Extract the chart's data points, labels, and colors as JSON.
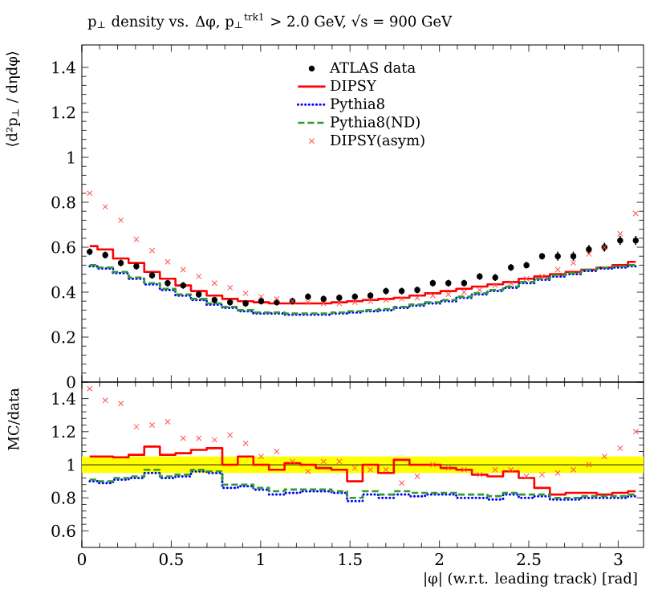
{
  "chart_data": [
    {
      "type": "step",
      "title": "p$_{⊥}$ density vs. Δφ, p$_{⊥}$$^{trk1}$ > 2.0 GeV, √s = 900 GeV",
      "ylabel": "⟨d²p$_{⊥}$ / dηdφ⟩",
      "x": [
        0.044,
        0.131,
        0.218,
        0.305,
        0.393,
        0.48,
        0.567,
        0.654,
        0.742,
        0.829,
        0.916,
        1.003,
        1.09,
        1.178,
        1.265,
        1.352,
        1.44,
        1.527,
        1.614,
        1.701,
        1.789,
        1.876,
        1.963,
        2.05,
        2.138,
        2.225,
        2.312,
        2.4,
        2.487,
        2.574,
        2.662,
        2.749,
        2.836,
        2.923,
        3.011,
        3.098
      ],
      "xlim": [
        0,
        3.1416
      ],
      "xticks": [
        0,
        0.5,
        1,
        1.5,
        2,
        2.5,
        3
      ],
      "ylim": [
        0,
        1.5
      ],
      "yticks": [
        0,
        0.2,
        0.4,
        0.6,
        0.8,
        1,
        1.2,
        1.4
      ],
      "tick_labels": "y",
      "legend": "top",
      "series": [
        {
          "name": "ATLAS data",
          "type": "scatter",
          "marker": "circle",
          "color": "#000000",
          "values": [
            0.58,
            0.565,
            0.53,
            0.515,
            0.475,
            0.44,
            0.43,
            0.39,
            0.365,
            0.355,
            0.35,
            0.36,
            0.355,
            0.36,
            0.38,
            0.37,
            0.375,
            0.38,
            0.385,
            0.405,
            0.405,
            0.41,
            0.44,
            0.44,
            0.44,
            0.47,
            0.465,
            0.51,
            0.52,
            0.56,
            0.56,
            0.56,
            0.59,
            0.6,
            0.63,
            0.63
          ],
          "errors": [
            0.015,
            0.015,
            0.015,
            0.015,
            0.015,
            0.015,
            0.015,
            0.015,
            0.015,
            0.015,
            0.015,
            0.015,
            0.015,
            0.015,
            0.015,
            0.015,
            0.015,
            0.015,
            0.015,
            0.015,
            0.015,
            0.015,
            0.015,
            0.015,
            0.015,
            0.015,
            0.015,
            0.015,
            0.015,
            0.015,
            0.02,
            0.02,
            0.02,
            0.02,
            0.02,
            0.02
          ]
        },
        {
          "name": "DIPSY",
          "color": "#ff0000",
          "line_style": "solid",
          "values": [
            0.605,
            0.59,
            0.55,
            0.53,
            0.49,
            0.46,
            0.43,
            0.405,
            0.385,
            0.37,
            0.36,
            0.355,
            0.35,
            0.35,
            0.35,
            0.35,
            0.355,
            0.36,
            0.365,
            0.37,
            0.375,
            0.385,
            0.395,
            0.405,
            0.415,
            0.425,
            0.435,
            0.445,
            0.46,
            0.47,
            0.48,
            0.49,
            0.5,
            0.51,
            0.52,
            0.535
          ]
        },
        {
          "name": "Pythia8",
          "color": "#0000ff",
          "line_style": "dotted",
          "values": [
            0.515,
            0.505,
            0.485,
            0.46,
            0.435,
            0.41,
            0.385,
            0.365,
            0.345,
            0.33,
            0.315,
            0.305,
            0.305,
            0.3,
            0.3,
            0.3,
            0.305,
            0.31,
            0.315,
            0.32,
            0.33,
            0.34,
            0.35,
            0.36,
            0.375,
            0.39,
            0.405,
            0.42,
            0.44,
            0.455,
            0.47,
            0.48,
            0.495,
            0.505,
            0.51,
            0.515
          ]
        },
        {
          "name": "Pythia8(ND)",
          "color": "#2e9a2e",
          "line_style": "dashed",
          "values": [
            0.52,
            0.51,
            0.49,
            0.465,
            0.44,
            0.415,
            0.39,
            0.37,
            0.35,
            0.335,
            0.32,
            0.31,
            0.31,
            0.305,
            0.305,
            0.305,
            0.31,
            0.315,
            0.32,
            0.325,
            0.335,
            0.345,
            0.355,
            0.365,
            0.38,
            0.395,
            0.41,
            0.425,
            0.445,
            0.46,
            0.475,
            0.485,
            0.5,
            0.51,
            0.515,
            0.52
          ]
        },
        {
          "name": "DIPSY(asym)",
          "type": "scatter",
          "marker": "cross",
          "color": "#ff5050",
          "values": [
            0.84,
            0.78,
            0.72,
            0.635,
            0.585,
            0.535,
            0.5,
            0.47,
            0.44,
            0.42,
            0.395,
            0.38,
            0.37,
            0.36,
            0.355,
            0.35,
            0.35,
            0.355,
            0.36,
            0.365,
            0.37,
            0.375,
            0.385,
            0.39,
            0.4,
            0.41,
            0.43,
            0.44,
            0.46,
            0.47,
            0.5,
            0.53,
            0.57,
            0.6,
            0.66,
            0.75
          ]
        }
      ]
    },
    {
      "type": "step",
      "xlabel": "|φ| (w.r.t. leading track) [rad]",
      "ylabel": "MC/data",
      "x": [
        0.044,
        0.131,
        0.218,
        0.305,
        0.393,
        0.48,
        0.567,
        0.654,
        0.742,
        0.829,
        0.916,
        1.003,
        1.09,
        1.178,
        1.265,
        1.352,
        1.44,
        1.527,
        1.614,
        1.701,
        1.789,
        1.876,
        1.963,
        2.05,
        2.138,
        2.225,
        2.312,
        2.4,
        2.487,
        2.574,
        2.662,
        2.749,
        2.836,
        2.923,
        3.011,
        3.098
      ],
      "xlim": [
        0,
        3.1416
      ],
      "xticks": [
        0,
        0.5,
        1,
        1.5,
        2,
        2.5,
        3
      ],
      "ylim": [
        0.5,
        1.5
      ],
      "yticks": [
        0.6,
        0.8,
        1,
        1.2,
        1.4
      ],
      "bands": [
        {
          "axis": "y",
          "from": 0.95,
          "to": 1.05,
          "color": "#ffff00"
        }
      ],
      "ref_lines": [
        {
          "axis": "y",
          "value": 1,
          "color": "#000000"
        }
      ],
      "series": [
        {
          "color": "#ff0000",
          "line_style": "solid",
          "values": [
            1.05,
            1.05,
            1.045,
            1.06,
            1.11,
            1.06,
            1.07,
            1.09,
            1.1,
            1.0,
            1.05,
            1.0,
            0.97,
            1.01,
            1.0,
            0.98,
            0.97,
            0.9,
            1.0,
            0.95,
            1.03,
            1.0,
            1.0,
            0.98,
            0.97,
            0.94,
            0.93,
            0.96,
            0.92,
            0.86,
            0.82,
            0.83,
            0.83,
            0.82,
            0.83,
            0.84
          ]
        },
        {
          "color": "#0000ff",
          "line_style": "dotted",
          "values": [
            0.9,
            0.89,
            0.91,
            0.92,
            0.95,
            0.92,
            0.93,
            0.96,
            0.95,
            0.86,
            0.87,
            0.85,
            0.82,
            0.83,
            0.84,
            0.84,
            0.83,
            0.78,
            0.82,
            0.8,
            0.82,
            0.81,
            0.82,
            0.82,
            0.8,
            0.8,
            0.79,
            0.82,
            0.8,
            0.81,
            0.79,
            0.79,
            0.8,
            0.8,
            0.8,
            0.81
          ]
        },
        {
          "color": "#2e9a2e",
          "line_style": "dashed",
          "values": [
            0.91,
            0.9,
            0.92,
            0.93,
            0.97,
            0.93,
            0.94,
            0.97,
            0.96,
            0.88,
            0.88,
            0.86,
            0.84,
            0.85,
            0.85,
            0.85,
            0.84,
            0.8,
            0.84,
            0.82,
            0.84,
            0.83,
            0.83,
            0.83,
            0.82,
            0.82,
            0.81,
            0.83,
            0.82,
            0.82,
            0.8,
            0.8,
            0.81,
            0.81,
            0.81,
            0.82
          ]
        },
        {
          "type": "scatter",
          "marker": "cross",
          "color": "#ff5050",
          "values": [
            1.46,
            1.39,
            1.37,
            1.23,
            1.24,
            1.26,
            1.16,
            1.16,
            1.15,
            1.18,
            1.13,
            1.05,
            1.08,
            1.02,
            0.96,
            1.02,
            1.02,
            0.98,
            0.97,
            0.97,
            0.89,
            0.93,
            1.0,
            0.98,
            0.97,
            0.94,
            0.97,
            0.97,
            0.93,
            0.94,
            0.95,
            0.97,
            1.0,
            1.05,
            1.1,
            1.2
          ]
        }
      ]
    }
  ]
}
